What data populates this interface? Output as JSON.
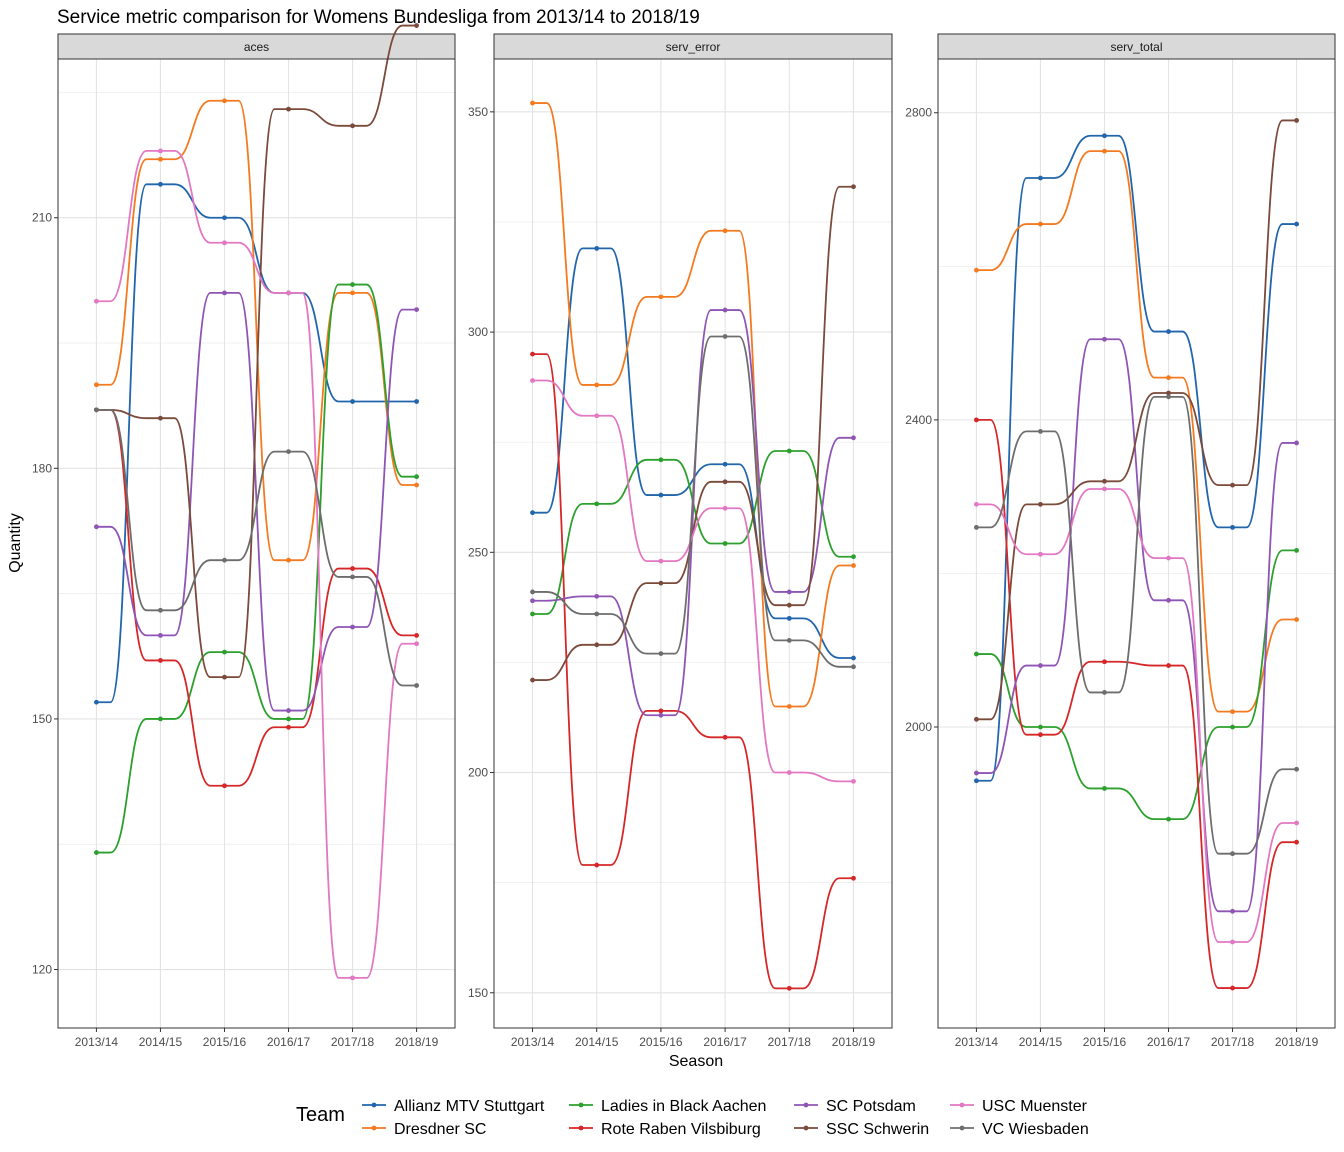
{
  "chart_data": {
    "type": "line",
    "title": "Service metric comparison for Womens Bundesliga from 2013/14 to 2018/19",
    "xlabel": "Season",
    "ylabel": "Quantity",
    "categories": [
      "2013/14",
      "2014/15",
      "2015/16",
      "2016/17",
      "2017/18",
      "2018/19"
    ],
    "legend": {
      "title": "Team",
      "position": "bottom",
      "entries": [
        "Allianz MTV Stuttgart",
        "Dresdner SC",
        "Ladies in Black Aachen",
        "Rote Raben Vilsbiburg",
        "SC Potsdam",
        "SSC Schwerin",
        "USC Muenster",
        "VC Wiesbaden"
      ]
    },
    "colors": {
      "Allianz MTV Stuttgart": "#2166ac",
      "Dresdner SC": "#f47a20",
      "Ladies in Black Aachen": "#2ca02c",
      "Rote Raben Vilsbiburg": "#d62728",
      "SC Potsdam": "#8e55b5",
      "SSC Schwerin": "#7a4a3a",
      "USC Muenster": "#e377c2",
      "VC Wiesbaden": "#6d6d6d"
    },
    "grid": true,
    "panels": [
      {
        "name": "aces",
        "ylim": [
          113,
          229
        ],
        "yticks": [
          120,
          150,
          180,
          210
        ],
        "series": [
          {
            "name": "Allianz MTV Stuttgart",
            "values": [
              152,
              214,
              210,
              201,
              188,
              188
            ]
          },
          {
            "name": "Dresdner SC",
            "values": [
              190,
              217,
              224,
              169,
              201,
              178
            ]
          },
          {
            "name": "Ladies in Black Aachen",
            "values": [
              134,
              150,
              158,
              150,
              202,
              179
            ]
          },
          {
            "name": "Rote Raben Vilsbiburg",
            "values": [
              187,
              157,
              142,
              149,
              168,
              160
            ]
          },
          {
            "name": "SC Potsdam",
            "values": [
              173,
              160,
              201,
              151,
              161,
              199
            ]
          },
          {
            "name": "SSC Schwerin",
            "values": [
              187,
              186,
              155,
              223,
              221,
              233
            ]
          },
          {
            "name": "USC Muenster",
            "values": [
              200,
              218,
              207,
              201,
              119,
              159
            ]
          },
          {
            "name": "VC Wiesbaden",
            "values": [
              187,
              163,
              169,
              182,
              167,
              154
            ]
          }
        ]
      },
      {
        "name": "serv_error",
        "ylim": [
          142,
          362
        ],
        "yticks": [
          150,
          200,
          250,
          300,
          350
        ],
        "series": [
          {
            "name": "Allianz MTV Stuttgart",
            "values": [
              259,
              319,
              263,
              270,
              235,
              226
            ]
          },
          {
            "name": "Dresdner SC",
            "values": [
              352,
              288,
              308,
              323,
              215,
              247
            ]
          },
          {
            "name": "Ladies in Black Aachen",
            "values": [
              236,
              261,
              271,
              252,
              273,
              249
            ]
          },
          {
            "name": "Rote Raben Vilsbiburg",
            "values": [
              295,
              179,
              214,
              208,
              151,
              176
            ]
          },
          {
            "name": "SC Potsdam",
            "values": [
              239,
              240,
              213,
              305,
              241,
              276
            ]
          },
          {
            "name": "SSC Schwerin",
            "values": [
              221,
              229,
              243,
              266,
              238,
              333
            ]
          },
          {
            "name": "USC Muenster",
            "values": [
              289,
              281,
              248,
              260,
              200,
              198
            ]
          },
          {
            "name": "VC Wiesbaden",
            "values": [
              241,
              236,
              227,
              299,
              230,
              224
            ]
          }
        ]
      },
      {
        "name": "serv_total",
        "ylim": [
          1608,
          2870
        ],
        "yticks": [
          2000,
          2400,
          2800
        ],
        "series": [
          {
            "name": "Allianz MTV Stuttgart",
            "values": [
              1930,
              2715,
              2770,
              2515,
              2260,
              2655
            ]
          },
          {
            "name": "Dresdner SC",
            "values": [
              2595,
              2655,
              2750,
              2455,
              2020,
              2140
            ]
          },
          {
            "name": "Ladies in Black Aachen",
            "values": [
              2095,
              2000,
              1920,
              1880,
              2000,
              2230
            ]
          },
          {
            "name": "Rote Raben Vilsbiburg",
            "values": [
              2400,
              1990,
              2085,
              2080,
              1660,
              1850
            ]
          },
          {
            "name": "SC Potsdam",
            "values": [
              1940,
              2080,
              2505,
              2165,
              1760,
              2370
            ]
          },
          {
            "name": "SSC Schwerin",
            "values": [
              2010,
              2290,
              2320,
              2435,
              2315,
              2790
            ]
          },
          {
            "name": "USC Muenster",
            "values": [
              2290,
              2225,
              2310,
              2220,
              1720,
              1875
            ]
          },
          {
            "name": "VC Wiesbaden",
            "values": [
              2260,
              2385,
              2045,
              2430,
              1835,
              1945
            ]
          }
        ]
      }
    ]
  }
}
